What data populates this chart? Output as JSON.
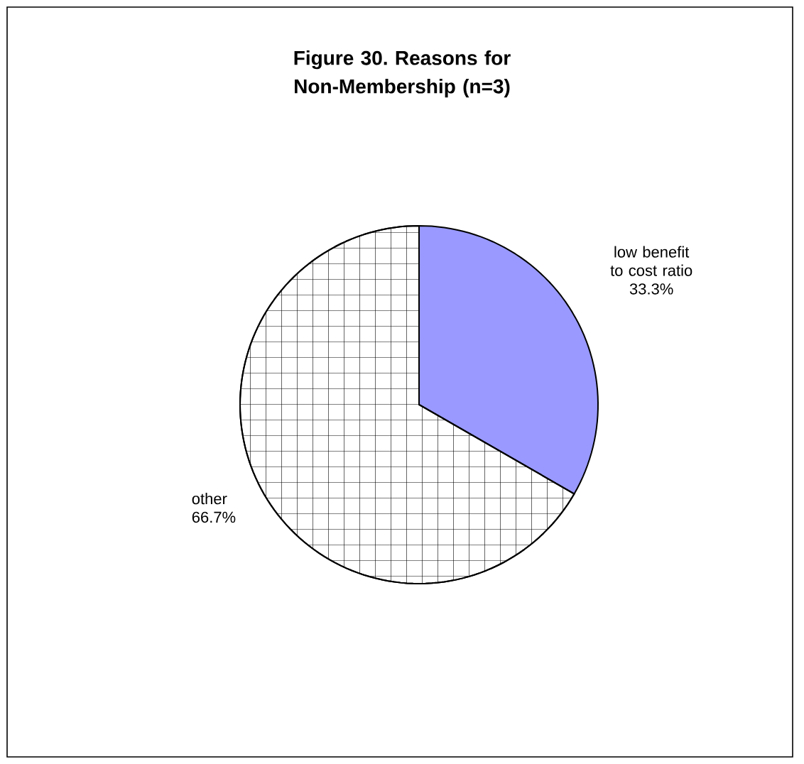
{
  "chart_data": {
    "type": "pie",
    "title": "Figure 30. Reasons for Non-Membership (n=3)",
    "categories": [
      "low benefit to cost ratio",
      "other"
    ],
    "values": [
      33.3,
      66.7
    ],
    "colors": [
      "#9999ff",
      "#ffffff"
    ],
    "value_labels": [
      "33.3%",
      "66.7%"
    ]
  }
}
